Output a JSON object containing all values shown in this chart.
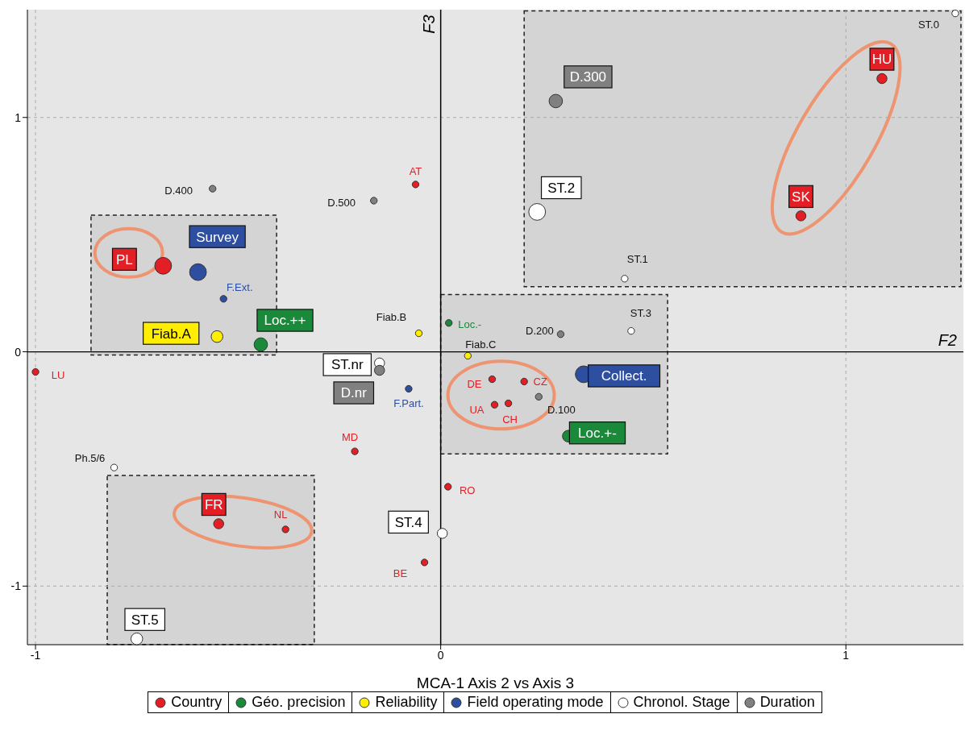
{
  "chart_data": {
    "type": "bubble",
    "xlabel": "MCA-1 Axis 2 vs Axis 3",
    "xlim": [
      -1.02,
      1.29
    ],
    "ylim": [
      -1.25,
      1.46
    ],
    "xticks": [
      -1,
      0,
      1
    ],
    "yticks": [
      -1,
      0,
      1
    ],
    "grid": true,
    "legend": "bottom",
    "marker": "circle",
    "ref_lines": [
      {
        "axis": "x",
        "value": 0,
        "label": "F3"
      },
      {
        "axis": "y",
        "value": 0,
        "label": "F2"
      }
    ],
    "series": [
      {
        "name": "Country",
        "color": "#e31e24",
        "x": [
          1.089,
          0.889,
          -0.062,
          -0.685,
          -1.0,
          0.127,
          0.206,
          0.133,
          0.167,
          -0.212,
          0.018,
          -0.548,
          -0.383,
          -0.04
        ],
        "values": [
          1.166,
          0.58,
          0.714,
          0.367,
          -0.086,
          -0.117,
          -0.127,
          -0.226,
          -0.22,
          -0.425,
          -0.576,
          -0.734,
          -0.758,
          -0.899
        ],
        "sizes": [
          0.36,
          0.36,
          0.16,
          1,
          0.16,
          0.16,
          0.16,
          0.16,
          0.16,
          0.16,
          0.16,
          0.36,
          0.16,
          0.16
        ],
        "value_labels": [
          "HU",
          "SK",
          "AT",
          "PL",
          "LU",
          "DE",
          "CZ",
          "UA",
          "CH",
          "MD",
          "RO",
          "FR",
          "NL",
          "BE"
        ]
      },
      {
        "name": "Géo. precision",
        "color": "#1a8a3a",
        "x": [
          -0.444,
          0.02,
          0.315
        ],
        "values": [
          0.031,
          0.123,
          -0.36
        ],
        "sizes": [
          0.64,
          0.16,
          0.49
        ],
        "value_labels": [
          "Loc.++",
          "Loc.-",
          "Loc.+-"
        ]
      },
      {
        "name": "Reliability",
        "color": "#ffee00",
        "x": [
          -0.552,
          -0.054,
          0.067
        ],
        "values": [
          0.065,
          0.079,
          -0.017
        ],
        "sizes": [
          0.49,
          0.16,
          0.16
        ],
        "value_labels": [
          "Fiab.A",
          "Fiab.B",
          "Fiab.C"
        ]
      },
      {
        "name": "Field operating mode",
        "color": "#2e4fa0",
        "x": [
          -0.599,
          -0.536,
          -0.079,
          0.353
        ],
        "values": [
          0.34,
          0.226,
          -0.158,
          -0.096
        ],
        "sizes": [
          1,
          0.16,
          0.16,
          1
        ],
        "value_labels": [
          "Survey",
          "F.Ext.",
          "F.Part.",
          "Collect."
        ]
      },
      {
        "name": "Chronol. Stage",
        "color": "#ffffff",
        "x": [
          1.27,
          0.238,
          0.454,
          0.47,
          -0.151,
          0.004,
          -0.75,
          -0.806
        ],
        "values": [
          1.444,
          0.597,
          0.312,
          0.089,
          -0.048,
          -0.775,
          -1.225,
          -0.494
        ],
        "sizes": [
          0.16,
          1,
          0.16,
          0.16,
          0.36,
          0.36,
          0.49,
          0.16
        ],
        "value_labels": [
          "ST.0",
          "ST.2",
          "ST.1",
          "ST.3",
          "ST.nr",
          "ST.4",
          "ST.5",
          "Ph.5/6"
        ]
      },
      {
        "name": "Duration",
        "color": "#808080",
        "x": [
          0.284,
          -0.563,
          -0.165,
          0.296,
          -0.151,
          0.242
        ],
        "values": [
          1.07,
          0.696,
          0.645,
          0.075,
          -0.079,
          -0.192
        ],
        "sizes": [
          0.64,
          0.16,
          0.16,
          0.16,
          0.36,
          0.16
        ],
        "value_labels": [
          "D.300",
          "D.400",
          "D.500",
          "D.200",
          "D.nr",
          "D.100"
        ]
      }
    ]
  }
}
